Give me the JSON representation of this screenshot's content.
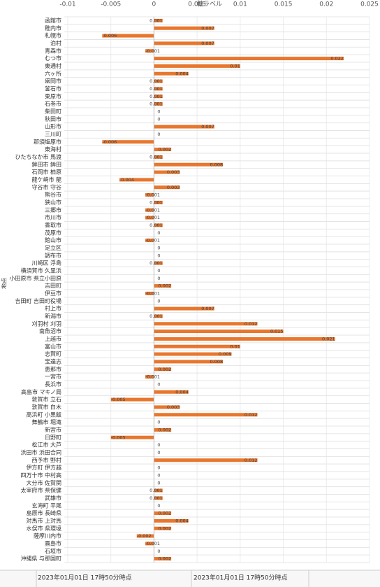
{
  "chart_data": {
    "type": "hbar",
    "x_label": "軸ラベル",
    "y_label": "地点",
    "categories": [
      "函館市",
      "稚内市",
      "札幌市",
      "泊村",
      "青森市",
      "むつ市",
      "東通村",
      "六ヶ所",
      "盛岡市",
      "釜石市",
      "栗原市",
      "石巻市",
      "柴田町",
      "秋田市",
      "山形市",
      "三川町",
      "那須塩原市",
      "東海村",
      "ひたちなか市 馬渡",
      "鉾田市 鉾田",
      "石岡市 柏原",
      "龍ケ崎市 龍",
      "守谷市 守谷",
      "熊谷市",
      "狭山市",
      "三郷市",
      "市川市",
      "香取市",
      "茂原市",
      "館山市",
      "足立区",
      "調布市",
      "川崎区 浮島",
      "横須賀市 久里浜",
      "小田原市 県立小田原",
      "吉田町",
      "伊豆市",
      "吉田町 吉田町役場",
      "村上市",
      "新潟市",
      "刈羽村 刈羽",
      "南魚沼市",
      "上越市",
      "富山市",
      "志賀町",
      "宝達志",
      "恵那市",
      "一宮市",
      "長浜市",
      "高島市 マキノ局",
      "敦賀市 立石",
      "敦賀市 白木",
      "高浜町 小黒飯",
      "舞鶴市 堀滝",
      "新宮市",
      "日野町",
      "松江市 大芦",
      "浜田市 浜田合同",
      "西予市 野村",
      "伊方町 伊方越",
      "四万十市 中村高",
      "大分市 佐賀関",
      "太宰府市 県保健",
      "武雄市",
      "玄海町 平尾",
      "島原市 長崎県",
      "対馬市 上対馬",
      "水俣市 県環境",
      "薩摩川内市",
      "霧島市",
      "石垣市",
      "沖縄県 与那国町"
    ],
    "values": [
      0.001,
      0.007,
      -0.006,
      0.007,
      -0.001,
      0.022,
      0.01,
      0.004,
      0.001,
      0.001,
      0.001,
      0.001,
      0,
      0,
      0.007,
      0,
      -0.006,
      0.002,
      0.001,
      0.008,
      0.003,
      -0.004,
      0.003,
      -0.001,
      0.001,
      -0.001,
      -0.001,
      0.001,
      0,
      -0.001,
      0,
      0,
      0.001,
      0,
      0,
      0.002,
      -0.001,
      0,
      0.007,
      0.001,
      0.012,
      0.015,
      0.021,
      0.01,
      0.009,
      0.008,
      0.002,
      -0.001,
      0,
      0.004,
      -0.005,
      0.003,
      0.012,
      0,
      0.002,
      -0.005,
      0,
      0,
      0.012,
      0,
      0,
      0,
      0.001,
      0.001,
      0,
      0.002,
      0.004,
      0.002,
      -0.002,
      -0.001,
      0,
      0.002
    ],
    "color": "#e8772e",
    "xlim": [
      -0.01,
      0.025
    ],
    "xticks": [
      -0.01,
      -0.005,
      0,
      0.005,
      0.01,
      0.015,
      0.02,
      0.025
    ],
    "grid": true
  },
  "footer": [
    "2023年01月01日 17時50分時点",
    "2023年01月01日 17時50分時点"
  ]
}
